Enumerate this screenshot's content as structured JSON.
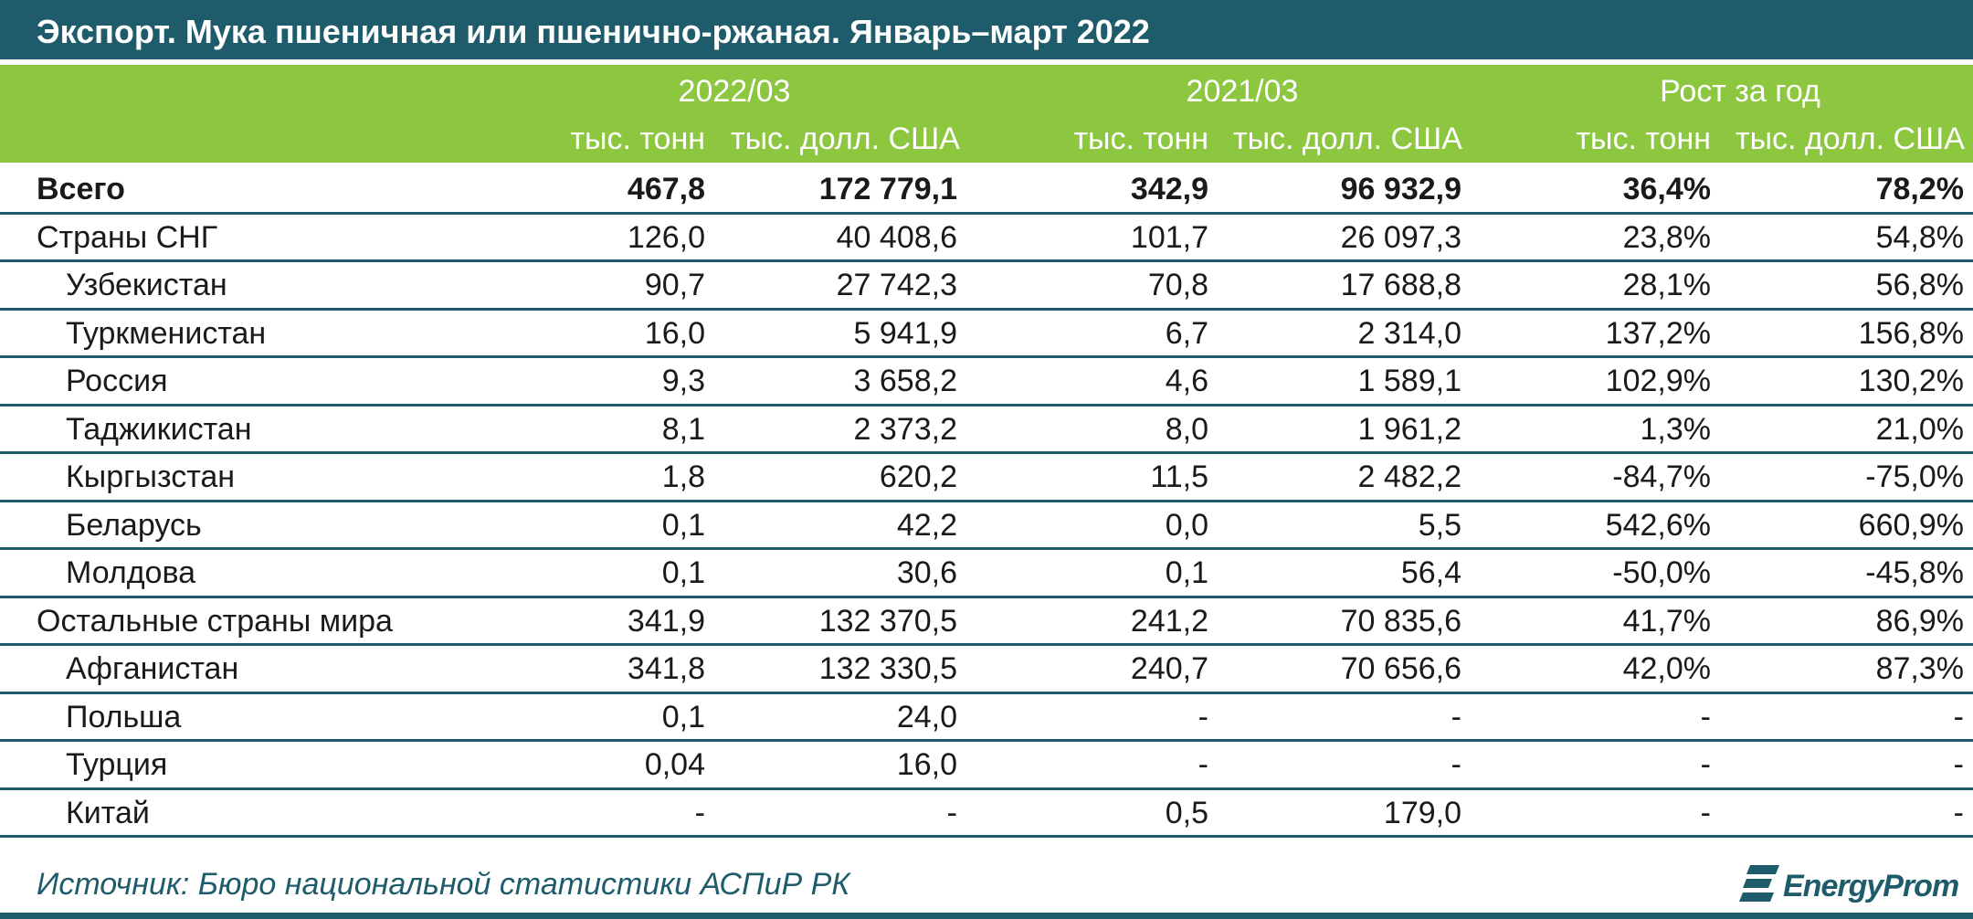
{
  "title": "Экспорт. Мука пшеничная или пшенично-ржаная. Январь–март 2022",
  "header": {
    "groups": [
      "2022/03",
      "2021/03",
      "Рост за год"
    ],
    "subheaders": [
      "тыс. тонн",
      "тыс. долл. США",
      "тыс. тонн",
      "тыс. долл. США",
      "тыс. тонн",
      "тыс. долл. США"
    ]
  },
  "rows": [
    {
      "label": "Всего",
      "values": [
        "467,8",
        "172 779,1",
        "342,9",
        "96 932,9",
        "36,4%",
        "78,2%"
      ]
    },
    {
      "label": "Страны СНГ",
      "values": [
        "126,0",
        "40 408,6",
        "101,7",
        "26 097,3",
        "23,8%",
        "54,8%"
      ]
    },
    {
      "label": "Узбекистан",
      "values": [
        "90,7",
        "27 742,3",
        "70,8",
        "17 688,8",
        "28,1%",
        "56,8%"
      ]
    },
    {
      "label": "Туркменистан",
      "values": [
        "16,0",
        "5 941,9",
        "6,7",
        "2 314,0",
        "137,2%",
        "156,8%"
      ]
    },
    {
      "label": "Россия",
      "values": [
        "9,3",
        "3 658,2",
        "4,6",
        "1 589,1",
        "102,9%",
        "130,2%"
      ]
    },
    {
      "label": "Таджикистан",
      "values": [
        "8,1",
        "2 373,2",
        "8,0",
        "1 961,2",
        "1,3%",
        "21,0%"
      ]
    },
    {
      "label": "Кыргызстан",
      "values": [
        "1,8",
        "620,2",
        "11,5",
        "2 482,2",
        "-84,7%",
        "-75,0%"
      ]
    },
    {
      "label": "Беларусь",
      "values": [
        "0,1",
        "42,2",
        "0,0",
        "5,5",
        "542,6%",
        "660,9%"
      ]
    },
    {
      "label": "Молдова",
      "values": [
        "0,1",
        "30,6",
        "0,1",
        "56,4",
        "-50,0%",
        "-45,8%"
      ]
    },
    {
      "label": "Остальные страны мира",
      "values": [
        "341,9",
        "132 370,5",
        "241,2",
        "70 835,6",
        "41,7%",
        "86,9%"
      ]
    },
    {
      "label": "Афганистан",
      "values": [
        "341,8",
        "132 330,5",
        "240,7",
        "70 656,6",
        "42,0%",
        "87,3%"
      ]
    },
    {
      "label": "Польша",
      "values": [
        "0,1",
        "24,0",
        "-",
        "-",
        "-",
        "-"
      ]
    },
    {
      "label": "Турция",
      "values": [
        "0,04",
        "16,0",
        "-",
        "-",
        "-",
        "-"
      ]
    },
    {
      "label": "Китай",
      "values": [
        "-",
        "-",
        "0,5",
        "179,0",
        "-",
        "-"
      ]
    }
  ],
  "footer": {
    "source": "Источник: Бюро национальной статистики АСПиР РК",
    "logo_text": "EnergyProm"
  },
  "colors": {
    "title_bg": "#1f5c6b",
    "header_bg": "#8dc63f",
    "rule": "#1f5c6b",
    "source_text": "#1f5c6b"
  }
}
